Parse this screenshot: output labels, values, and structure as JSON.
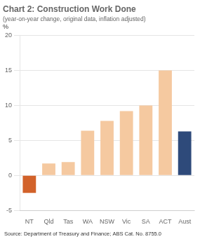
{
  "chart_data": {
    "type": "bar",
    "title": "Chart 2: Construction Work Done",
    "subtitle": "(year-on-year change, original data, inflation adjusted)",
    "y_label": "%",
    "source": "Source: Department of Treasury and Finance; ABS Cat. No. 8755.0",
    "categories": [
      "NT",
      "Qld",
      "Tas",
      "WA",
      "NSW",
      "Vic",
      "SA",
      "ACT",
      "Aust"
    ],
    "values": [
      -2.5,
      1.7,
      1.9,
      6.4,
      7.8,
      9.2,
      10.0,
      15.0,
      6.3
    ],
    "colors": [
      "#d2622a",
      "#f5c9a0",
      "#f5c9a0",
      "#f5c9a0",
      "#f5c9a0",
      "#f5c9a0",
      "#f5c9a0",
      "#f5c9a0",
      "#2e4a7a"
    ],
    "ylim": [
      -5,
      20
    ],
    "yticks": [
      -5,
      0,
      5,
      10,
      15,
      20
    ],
    "grid": true
  }
}
